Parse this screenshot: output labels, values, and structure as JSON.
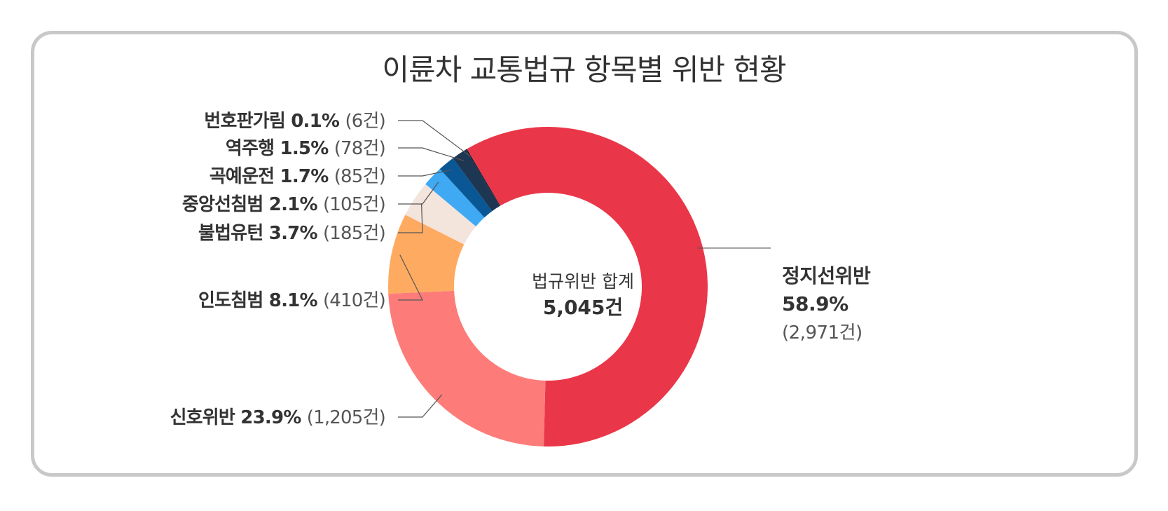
{
  "chart_data": {
    "type": "pie",
    "title": "이륜차 교통법규 항목별 위반 현황",
    "center_label": "법규위반 합계",
    "center_value": "5,045건",
    "slices": [
      {
        "name": "정지선위반",
        "percent": 58.9,
        "pct_label": "58.9%",
        "count": 2971,
        "count_label": "(2,971건)",
        "color": "#ea3649"
      },
      {
        "name": "신호위반",
        "percent": 23.9,
        "pct_label": "23.9%",
        "count": 1205,
        "count_label": "(1,205건)",
        "color": "#fd7c79"
      },
      {
        "name": "인도침범",
        "percent": 8.1,
        "pct_label": "8.1%",
        "count": 410,
        "count_label": "(410건)",
        "color": "#feab61"
      },
      {
        "name": "불법유턴",
        "percent": 3.7,
        "pct_label": "3.7%",
        "count": 185,
        "count_label": "(185건)",
        "color": "#f3e4dc"
      },
      {
        "name": "중앙선침범",
        "percent": 2.1,
        "pct_label": "2.1%",
        "count": 105,
        "count_label": "(105건)",
        "color": "#3fa9f3"
      },
      {
        "name": "곡예운전",
        "percent": 1.7,
        "pct_label": "1.7%",
        "count": 85,
        "count_label": "(85건)",
        "color": "#0a5796"
      },
      {
        "name": "역주행",
        "percent": 1.5,
        "pct_label": "1.5%",
        "count": 78,
        "count_label": "(78건)",
        "color": "#1d3652"
      },
      {
        "name": "번호판가림",
        "percent": 0.1,
        "pct_label": "0.1%",
        "count": 6,
        "count_label": "(6건)",
        "color": "#0f1f30"
      }
    ]
  }
}
